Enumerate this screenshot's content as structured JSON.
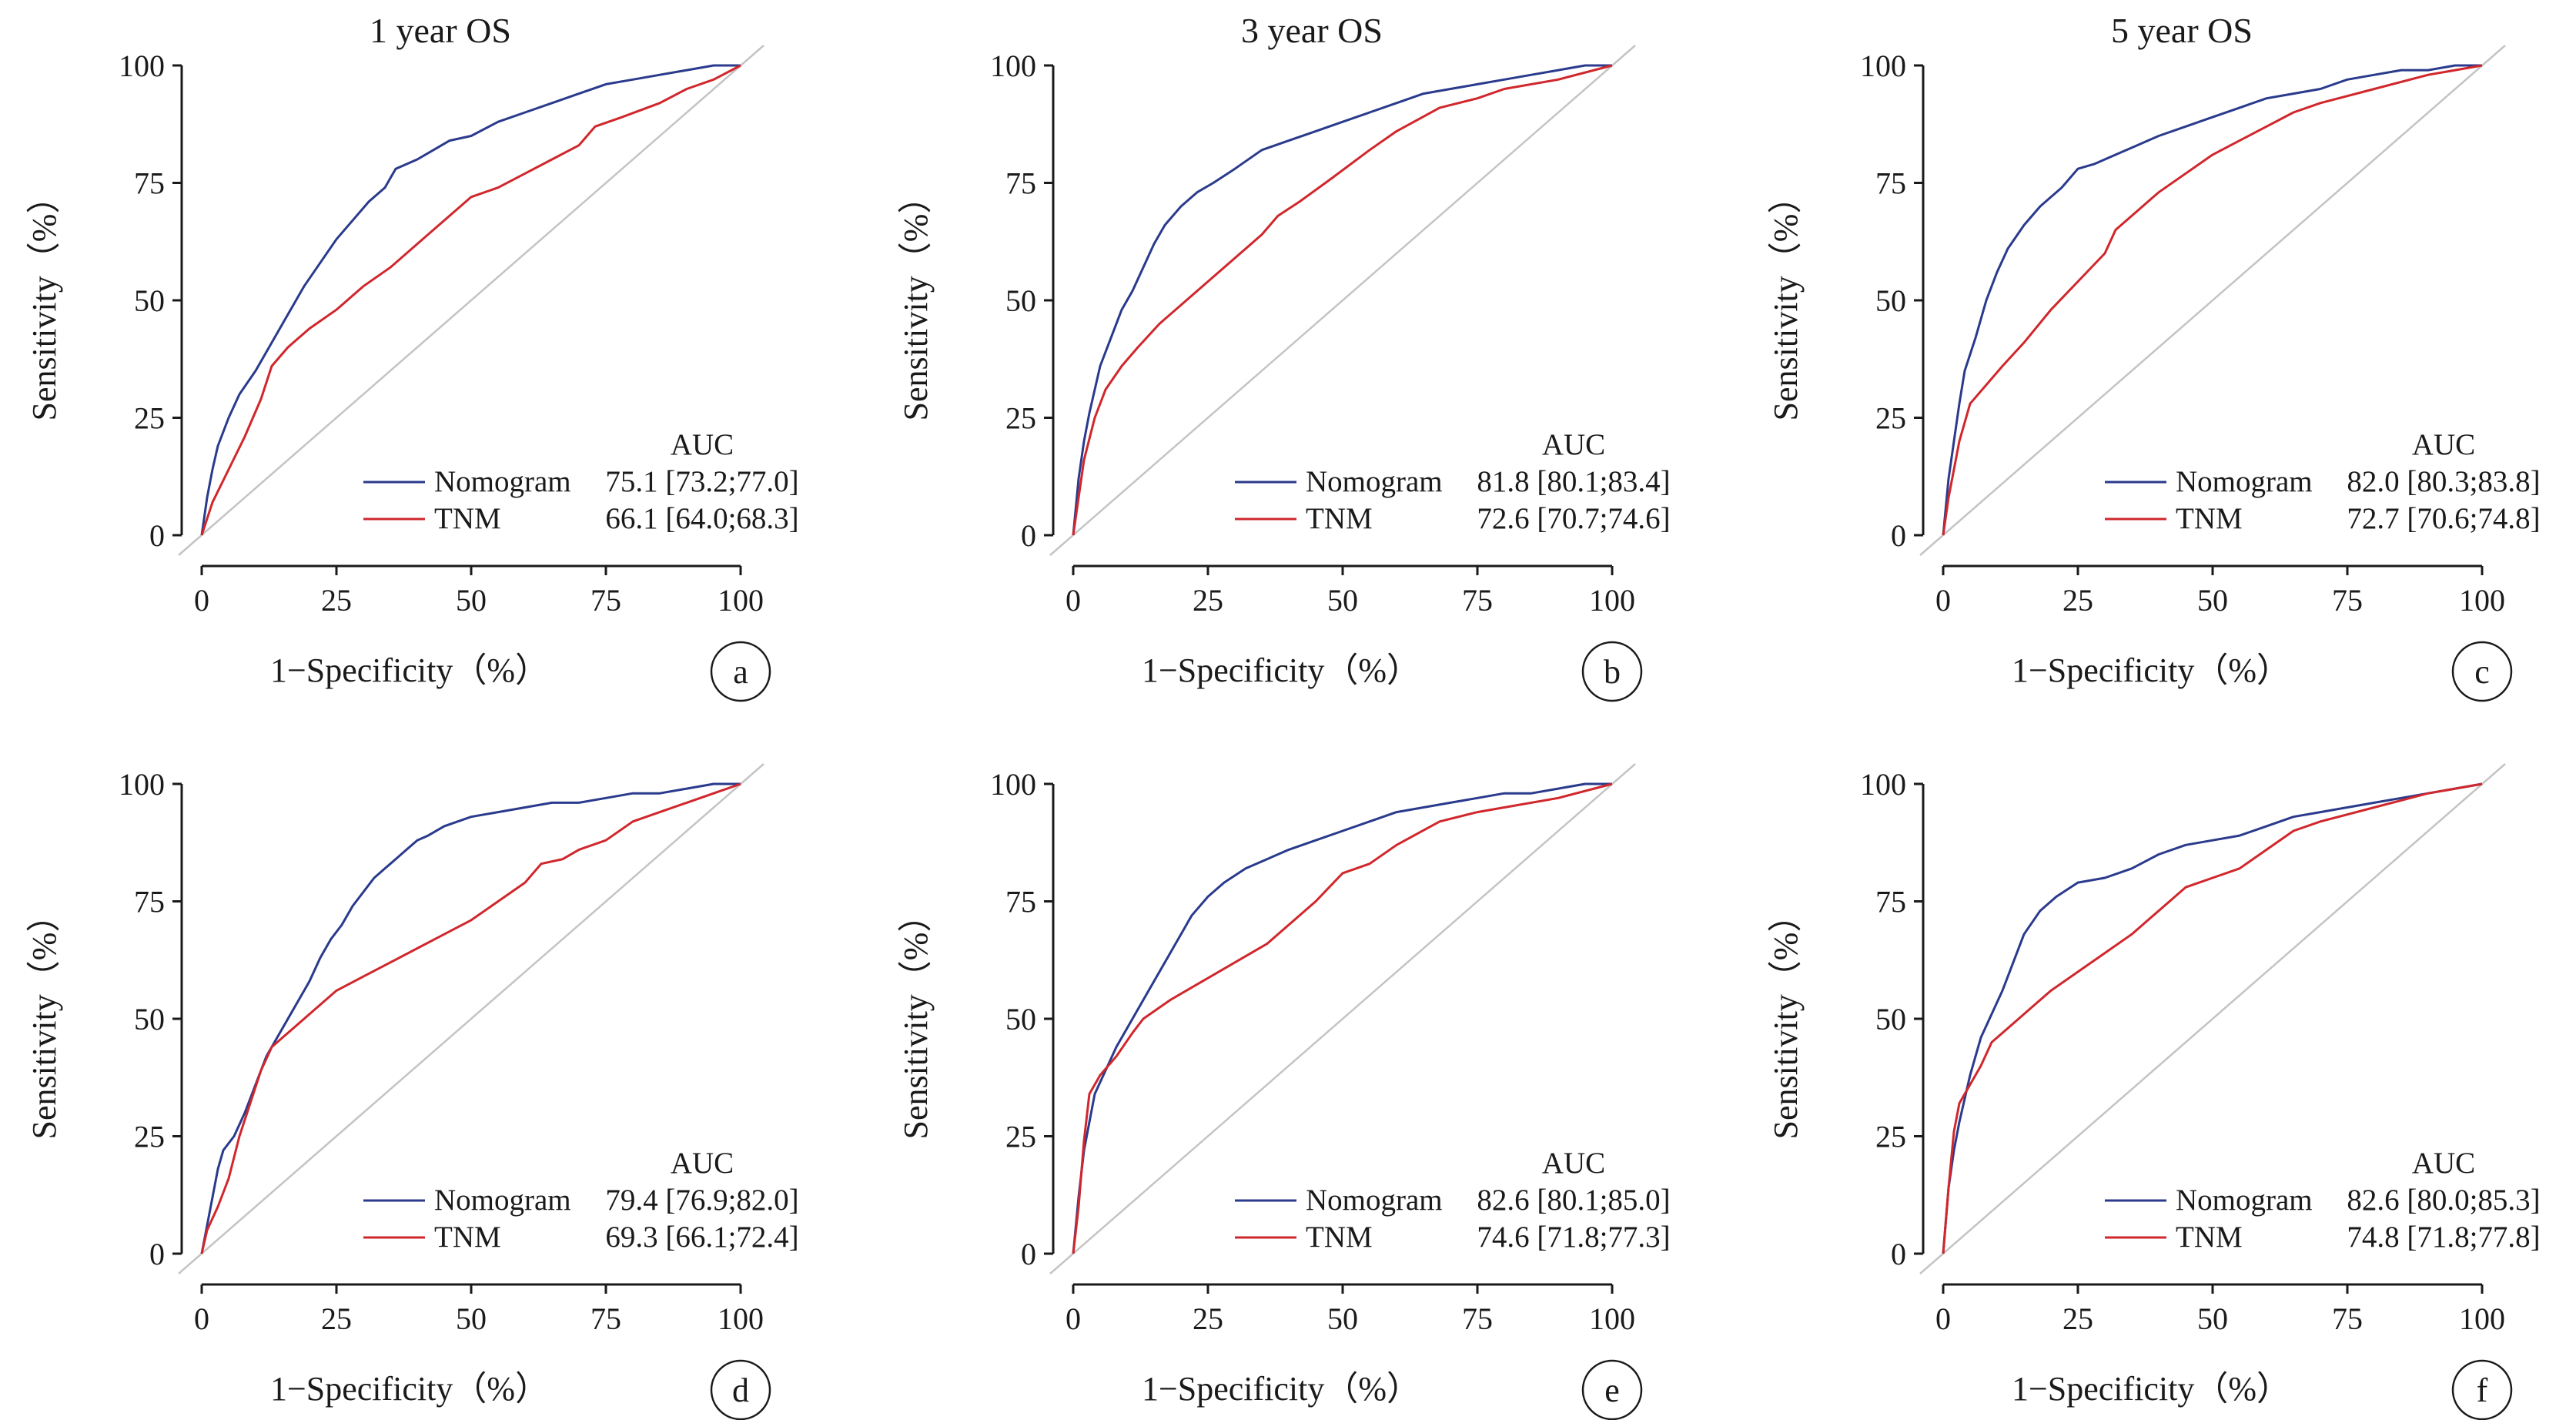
{
  "figure": {
    "colors": {
      "nomogram": "#2a3a8c",
      "tnm": "#d0272c",
      "diagonal": "#c4c4c4",
      "axis": "#1a1a1a"
    }
  },
  "chart_data": [
    {
      "type": "line",
      "panel": "a",
      "title": "1 year OS",
      "xlabel": "1−Specificity（%）",
      "ylabel": "Sensitivity（%）",
      "xlim": [
        0,
        100
      ],
      "ylim": [
        0,
        100
      ],
      "xticks": [
        "0",
        "25",
        "50",
        "75",
        "100"
      ],
      "yticks": [
        "0",
        "25",
        "50",
        "75",
        "100"
      ],
      "legend_header": "AUC",
      "legend_position": "bottom-right",
      "series": [
        {
          "name": "Nomogram",
          "auc": "75.1 [73.2;77.0]",
          "x": [
            0,
            1,
            2,
            3,
            5,
            7,
            10,
            13,
            16,
            19,
            22,
            25,
            28,
            31,
            34,
            36,
            38,
            40,
            43,
            46,
            50,
            55,
            60,
            65,
            70,
            75,
            80,
            85,
            90,
            95,
            100
          ],
          "y": [
            0,
            8,
            14,
            19,
            25,
            30,
            35,
            41,
            47,
            53,
            58,
            63,
            67,
            71,
            74,
            78,
            79,
            80,
            82,
            84,
            85,
            88,
            90,
            92,
            94,
            96,
            97,
            98,
            99,
            100,
            100
          ]
        },
        {
          "name": "TNM",
          "auc": "66.1 [64.0;68.3]",
          "x": [
            0,
            2,
            5,
            8,
            11,
            13,
            16,
            20,
            25,
            30,
            35,
            40,
            45,
            48,
            50,
            55,
            60,
            65,
            70,
            73,
            78,
            85,
            90,
            95,
            100
          ],
          "y": [
            0,
            7,
            14,
            21,
            29,
            36,
            40,
            44,
            48,
            53,
            57,
            62,
            67,
            70,
            72,
            74,
            77,
            80,
            83,
            87,
            89,
            92,
            95,
            97,
            100
          ]
        }
      ]
    },
    {
      "type": "line",
      "panel": "b",
      "title": "3 year OS",
      "xlabel": "1−Specificity（%）",
      "ylabel": "Sensitivity（%）",
      "xlim": [
        0,
        100
      ],
      "ylim": [
        0,
        100
      ],
      "xticks": [
        "0",
        "25",
        "50",
        "75",
        "100"
      ],
      "yticks": [
        "0",
        "25",
        "50",
        "75",
        "100"
      ],
      "legend_header": "AUC",
      "legend_position": "bottom-right",
      "series": [
        {
          "name": "Nomogram",
          "auc": "81.8 [80.1;83.4]",
          "x": [
            0,
            1,
            2,
            3,
            4,
            5,
            7,
            9,
            11,
            13,
            15,
            17,
            20,
            23,
            26,
            30,
            35,
            40,
            45,
            50,
            55,
            60,
            65,
            70,
            75,
            80,
            85,
            90,
            95,
            100
          ],
          "y": [
            0,
            12,
            20,
            26,
            31,
            36,
            42,
            48,
            52,
            57,
            62,
            66,
            70,
            73,
            75,
            78,
            82,
            84,
            86,
            88,
            90,
            92,
            94,
            95,
            96,
            97,
            98,
            99,
            100,
            100
          ]
        },
        {
          "name": "TNM",
          "auc": "72.6 [70.7;74.6]",
          "x": [
            0,
            1,
            2,
            4,
            6,
            9,
            12,
            16,
            20,
            25,
            30,
            35,
            38,
            42,
            48,
            55,
            60,
            68,
            75,
            80,
            90,
            100
          ],
          "y": [
            0,
            8,
            16,
            25,
            31,
            36,
            40,
            45,
            49,
            54,
            59,
            64,
            68,
            71,
            76,
            82,
            86,
            91,
            93,
            95,
            97,
            100
          ]
        }
      ]
    },
    {
      "type": "line",
      "panel": "c",
      "title": "5 year OS",
      "xlabel": "1−Specificity（%）",
      "ylabel": "Sensitivity（%）",
      "xlim": [
        0,
        100
      ],
      "ylim": [
        0,
        100
      ],
      "xticks": [
        "0",
        "25",
        "50",
        "75",
        "100"
      ],
      "yticks": [
        "0",
        "25",
        "50",
        "75",
        "100"
      ],
      "legend_header": "AUC",
      "legend_position": "bottom-right",
      "series": [
        {
          "name": "Nomogram",
          "auc": "82.0 [80.3;83.8]",
          "x": [
            0,
            1,
            2,
            3,
            4,
            6,
            8,
            10,
            12,
            15,
            18,
            22,
            25,
            28,
            32,
            36,
            40,
            45,
            50,
            55,
            60,
            65,
            70,
            75,
            80,
            85,
            90,
            95,
            100
          ],
          "y": [
            0,
            12,
            20,
            28,
            35,
            42,
            50,
            56,
            61,
            66,
            70,
            74,
            78,
            79,
            81,
            83,
            85,
            87,
            89,
            91,
            93,
            94,
            95,
            97,
            98,
            99,
            99,
            100,
            100
          ]
        },
        {
          "name": "TNM",
          "auc": "72.7 [70.6;74.8]",
          "x": [
            0,
            1,
            2,
            3,
            5,
            8,
            11,
            15,
            20,
            25,
            30,
            32,
            36,
            40,
            45,
            50,
            55,
            60,
            65,
            70,
            80,
            90,
            100
          ],
          "y": [
            0,
            8,
            14,
            20,
            28,
            32,
            36,
            41,
            48,
            54,
            60,
            65,
            69,
            73,
            77,
            81,
            84,
            87,
            90,
            92,
            95,
            98,
            100
          ]
        }
      ]
    },
    {
      "type": "line",
      "panel": "d",
      "title": "",
      "xlabel": "1−Specificity（%）",
      "ylabel": "Sensitivity（%）",
      "xlim": [
        0,
        100
      ],
      "ylim": [
        0,
        100
      ],
      "xticks": [
        "0",
        "25",
        "50",
        "75",
        "100"
      ],
      "yticks": [
        "0",
        "25",
        "50",
        "75",
        "100"
      ],
      "legend_header": "AUC",
      "legend_position": "bottom-right",
      "series": [
        {
          "name": "Nomogram",
          "auc": "79.4 [76.9;82.0]",
          "x": [
            0,
            1,
            2,
            3,
            4,
            6,
            8,
            10,
            12,
            14,
            16,
            18,
            20,
            22,
            24,
            26,
            28,
            30,
            32,
            34,
            36,
            38,
            40,
            42,
            45,
            50,
            55,
            60,
            65,
            70,
            75,
            80,
            85,
            90,
            95,
            100
          ],
          "y": [
            0,
            6,
            12,
            18,
            22,
            25,
            30,
            36,
            42,
            46,
            50,
            54,
            58,
            63,
            67,
            70,
            74,
            77,
            80,
            82,
            84,
            86,
            88,
            89,
            91,
            93,
            94,
            95,
            96,
            96,
            97,
            98,
            98,
            99,
            100,
            100
          ]
        },
        {
          "name": "TNM",
          "auc": "69.3 [66.1;72.4]",
          "x": [
            0,
            1,
            3,
            5,
            7,
            9,
            11,
            13,
            15,
            20,
            25,
            30,
            35,
            40,
            45,
            50,
            55,
            60,
            63,
            67,
            70,
            75,
            80,
            85,
            90,
            95,
            100
          ],
          "y": [
            0,
            5,
            10,
            16,
            25,
            32,
            39,
            44,
            46,
            51,
            56,
            59,
            62,
            65,
            68,
            71,
            75,
            79,
            83,
            84,
            86,
            88,
            92,
            94,
            96,
            98,
            100
          ]
        }
      ]
    },
    {
      "type": "line",
      "panel": "e",
      "title": "",
      "xlabel": "1−Specificity（%）",
      "ylabel": "Sensitivity（%）",
      "xlim": [
        0,
        100
      ],
      "ylim": [
        0,
        100
      ],
      "xticks": [
        "0",
        "25",
        "50",
        "75",
        "100"
      ],
      "yticks": [
        "0",
        "25",
        "50",
        "75",
        "100"
      ],
      "legend_header": "AUC",
      "legend_position": "bottom-right",
      "series": [
        {
          "name": "Nomogram",
          "auc": "82.6 [80.1;85.0]",
          "x": [
            0,
            1,
            2,
            3,
            4,
            6,
            8,
            10,
            12,
            14,
            16,
            18,
            20,
            22,
            25,
            28,
            32,
            36,
            40,
            45,
            50,
            55,
            60,
            65,
            70,
            75,
            80,
            85,
            90,
            95,
            100
          ],
          "y": [
            0,
            12,
            22,
            28,
            34,
            39,
            44,
            48,
            52,
            56,
            60,
            64,
            68,
            72,
            76,
            79,
            82,
            84,
            86,
            88,
            90,
            92,
            94,
            95,
            96,
            97,
            98,
            98,
            99,
            100,
            100
          ]
        },
        {
          "name": "TNM",
          "auc": "74.6 [71.8;77.3]",
          "x": [
            0,
            1,
            2,
            3,
            5,
            8,
            11,
            13,
            18,
            24,
            30,
            36,
            40,
            45,
            50,
            55,
            60,
            68,
            75,
            80,
            90,
            100
          ],
          "y": [
            0,
            10,
            24,
            34,
            38,
            42,
            47,
            50,
            54,
            58,
            62,
            66,
            70,
            75,
            81,
            83,
            87,
            92,
            94,
            95,
            97,
            100
          ]
        }
      ]
    },
    {
      "type": "line",
      "panel": "f",
      "title": "",
      "xlabel": "1−Specificity（%）",
      "ylabel": "Sensitivity（%）",
      "xlim": [
        0,
        100
      ],
      "ylim": [
        0,
        100
      ],
      "xticks": [
        "0",
        "25",
        "50",
        "75",
        "100"
      ],
      "yticks": [
        "0",
        "25",
        "50",
        "75",
        "100"
      ],
      "legend_header": "AUC",
      "legend_position": "bottom-right",
      "series": [
        {
          "name": "Nomogram",
          "auc": "82.6 [80.0;85.3]",
          "x": [
            0,
            1,
            2,
            3,
            5,
            7,
            9,
            11,
            13,
            15,
            18,
            21,
            25,
            30,
            35,
            40,
            45,
            50,
            55,
            60,
            65,
            70,
            75,
            80,
            85,
            90,
            95,
            100
          ],
          "y": [
            0,
            14,
            22,
            28,
            38,
            46,
            51,
            56,
            62,
            68,
            73,
            76,
            79,
            80,
            82,
            85,
            87,
            88,
            89,
            91,
            93,
            94,
            95,
            96,
            97,
            98,
            99,
            100
          ]
        },
        {
          "name": "TNM",
          "auc": "74.8 [71.8;77.8]",
          "x": [
            0,
            1,
            2,
            3,
            5,
            7,
            9,
            12,
            16,
            20,
            25,
            30,
            35,
            40,
            45,
            50,
            55,
            60,
            65,
            70,
            80,
            90,
            100
          ],
          "y": [
            0,
            14,
            26,
            32,
            36,
            40,
            45,
            48,
            52,
            56,
            60,
            64,
            68,
            73,
            78,
            80,
            82,
            86,
            90,
            92,
            95,
            98,
            100
          ]
        }
      ]
    }
  ]
}
